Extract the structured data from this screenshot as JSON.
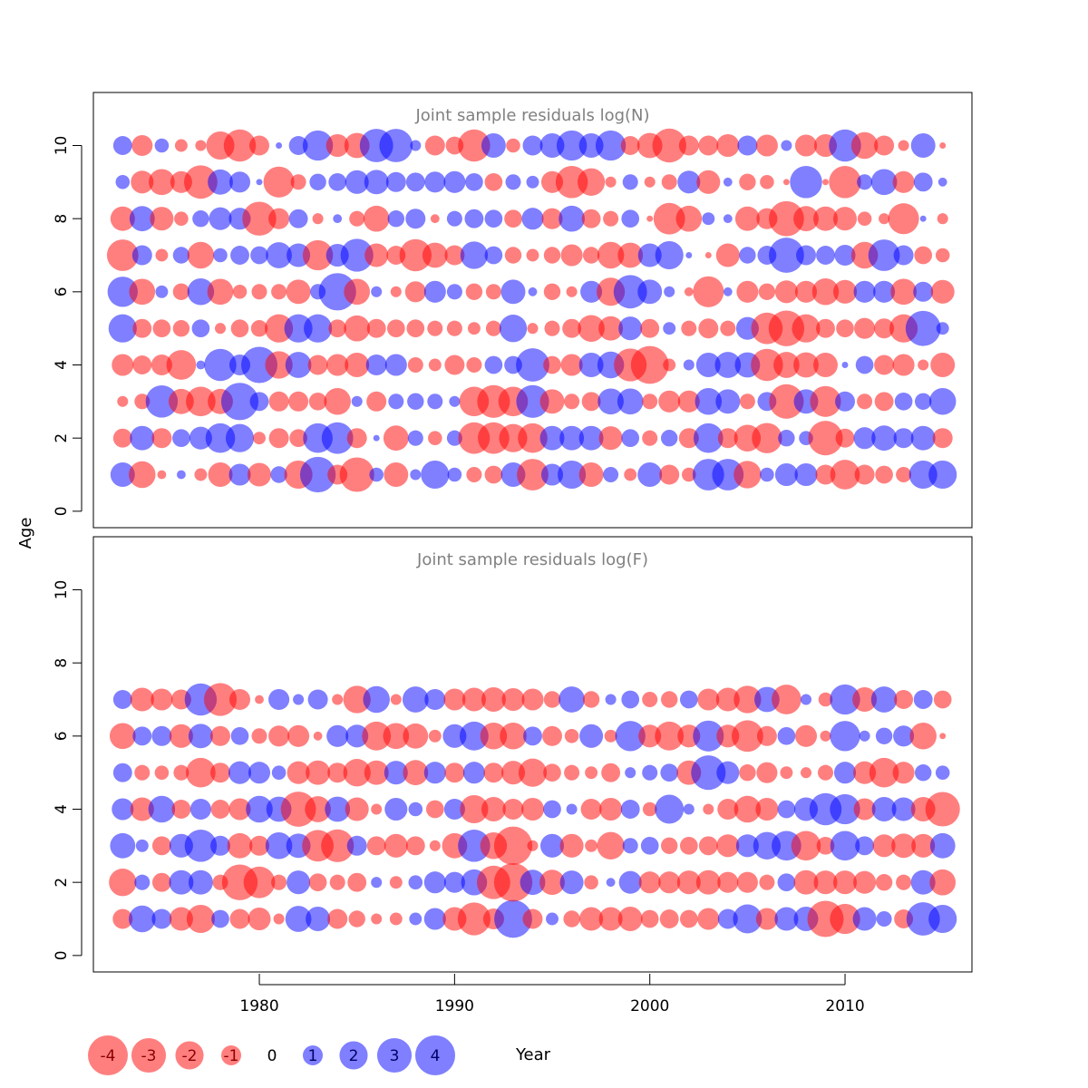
{
  "chart_data": {
    "type": "scatter",
    "subtype": "residual-bubble",
    "xlabel": "Year",
    "ylabel": "Age",
    "xticks": [
      1980,
      1990,
      2000,
      2010
    ],
    "yticks": [
      0,
      2,
      4,
      6,
      8,
      10
    ],
    "xlim": [
      1971.5,
      2016.5
    ],
    "ylim": [
      -0.45,
      11.45
    ],
    "years": [
      1973,
      1974,
      1975,
      1976,
      1977,
      1978,
      1979,
      1980,
      1981,
      1982,
      1983,
      1984,
      1985,
      1986,
      1987,
      1988,
      1989,
      1990,
      1991,
      1992,
      1993,
      1994,
      1995,
      1996,
      1997,
      1998,
      1999,
      2000,
      2001,
      2002,
      2003,
      2004,
      2005,
      2006,
      2007,
      2008,
      2009,
      2010,
      2011,
      2012,
      2013,
      2014,
      2015
    ],
    "colors": {
      "negative": "#ff0000",
      "positive": "#0000ff",
      "opacity": 0.5
    },
    "panels": [
      {
        "title": "Joint sample residuals log(N)",
        "ages": [
          1,
          2,
          3,
          4,
          5,
          6,
          7,
          8,
          9,
          10
        ],
        "residuals": [
          [
            1.5,
            -1.8,
            -0.2,
            0.2,
            -0.4,
            -1.5,
            1.2,
            -1.4,
            0.7,
            -2.0,
            3.2,
            -1.0,
            -3.0,
            0.5,
            -1.5,
            0.3,
            2.0,
            0.5,
            -0.6,
            -0.8,
            1.5,
            -2.5,
            1.2,
            2.0,
            -1.5,
            0.6,
            -0.4,
            1.5,
            -1.0,
            -0.5,
            2.5,
            2.5,
            -1.9,
            0.5,
            1.3,
            1.3,
            -1.0,
            -2.2,
            -1.0,
            -0.8,
            -0.6,
            2.0,
            2.0
          ],
          [
            -0.9,
            1.5,
            -1.0,
            0.8,
            1.3,
            2.2,
            2.0,
            -0.4,
            -1.0,
            -0.8,
            2.2,
            2.5,
            -1.0,
            0.1,
            -1.6,
            0.6,
            -0.5,
            0.6,
            -2.5,
            -2.5,
            -2.0,
            -2.2,
            1.5,
            1.5,
            1.5,
            -1.4,
            0.8,
            -0.6,
            0.7,
            -1.0,
            2.2,
            -1.0,
            -1.8,
            -2.3,
            0.7,
            0.5,
            -3.0,
            -0.9,
            1.2,
            1.6,
            1.0,
            1.5,
            -1.0
          ],
          [
            -0.3,
            -0.6,
            2.6,
            -1.6,
            -2.2,
            -1.6,
            3.5,
            0.9,
            -1.0,
            -1.0,
            -0.8,
            -1.8,
            0.3,
            -1.0,
            0.6,
            0.7,
            0.6,
            0.3,
            -2.2,
            -2.7,
            -2.2,
            2.7,
            -1.5,
            -0.6,
            -0.9,
            1.7,
            1.7,
            -0.6,
            -1.2,
            -1.2,
            1.8,
            1.5,
            -0.6,
            0.9,
            -3.0,
            1.5,
            -2.4,
            1.0,
            -0.6,
            -0.9,
            0.8,
            0.7,
            1.8
          ],
          [
            -1.2,
            -0.9,
            -1.1,
            -2.2,
            0.2,
            2.6,
            1.1,
            3.3,
            -1.9,
            1.7,
            -1.0,
            -1.2,
            -1.5,
            1.1,
            1.2,
            -0.6,
            -0.4,
            -1.0,
            -0.6,
            0.8,
            0.8,
            2.8,
            -0.8,
            -1.2,
            1.5,
            1.8,
            -2.7,
            -3.6,
            -0.4,
            0.3,
            1.5,
            1.7,
            1.6,
            -2.6,
            -1.7,
            -1.6,
            -1.5,
            0.1,
            0.8,
            -1.0,
            -1.2,
            -0.3,
            -1.5
          ],
          [
            2.0,
            -0.9,
            -0.8,
            -0.7,
            0.8,
            -0.3,
            -0.8,
            -0.7,
            -2.0,
            2.0,
            2.0,
            -0.8,
            -1.7,
            -0.9,
            -0.8,
            -0.8,
            -0.6,
            -0.6,
            -0.4,
            -0.6,
            1.9,
            -0.3,
            -0.6,
            -0.9,
            -1.8,
            -1.5,
            1.4,
            -0.9,
            0.4,
            -0.6,
            -1.0,
            -0.6,
            1.3,
            -2.5,
            -3.2,
            -2.0,
            -0.9,
            -0.8,
            -1.1,
            -1.0,
            -2.0,
            3.1,
            0.4
          ],
          [
            2.3,
            -1.7,
            0.4,
            -0.7,
            1.8,
            -1.7,
            -0.5,
            -0.6,
            -0.6,
            -1.5,
            0.6,
            3.5,
            -1.7,
            0.3,
            -0.3,
            -1.1,
            1.2,
            0.6,
            -0.7,
            -0.6,
            1.5,
            0.2,
            -0.7,
            -0.3,
            1.2,
            -2.0,
            2.8,
            1.5,
            0.3,
            -0.2,
            -2.4,
            0.2,
            -1.2,
            -0.7,
            -1.3,
            -1.2,
            -1.8,
            -1.4,
            1.2,
            1.2,
            -1.7,
            1.0,
            -1.4
          ],
          [
            -2.5,
            1.0,
            -0.4,
            0.7,
            -1.8,
            0.5,
            0.9,
            0.8,
            1.7,
            1.4,
            -2.3,
            1.3,
            2.7,
            -1.4,
            -0.9,
            -2.6,
            -1.6,
            -1.0,
            1.9,
            0.8,
            -0.7,
            -0.4,
            -0.7,
            -1.2,
            -0.7,
            -1.8,
            -1.6,
            1.4,
            2.0,
            0.1,
            -0.1,
            -1.4,
            0.7,
            0.9,
            3.1,
            1.0,
            0.9,
            1.1,
            -1.8,
            2.5,
            1.0,
            -0.8,
            -0.5
          ],
          [
            -1.5,
            1.6,
            -1.4,
            -0.5,
            0.7,
            1.3,
            1.2,
            -2.9,
            -1.1,
            0.9,
            -0.3,
            0.2,
            -0.6,
            -1.7,
            0.7,
            1.0,
            -0.2,
            0.6,
            0.9,
            0.8,
            -0.8,
            1.2,
            -1.1,
            1.7,
            -0.9,
            -0.6,
            0.8,
            -0.1,
            -2.5,
            -1.7,
            0.4,
            0.2,
            -1.5,
            -1.1,
            -3.1,
            -1.6,
            -1.5,
            -1.4,
            -0.5,
            -0.3,
            -2.4,
            0.1,
            -0.3
          ],
          [
            0.5,
            -1.3,
            -1.7,
            -1.2,
            -2.8,
            1.6,
            1.1,
            0.1,
            -2.4,
            -0.6,
            0.7,
            0.8,
            1.4,
            1.5,
            1.0,
            0.9,
            1.1,
            1.2,
            0.8,
            -0.8,
            0.6,
            0.4,
            -1.2,
            -2.6,
            -1.9,
            -0.3,
            0.6,
            -0.3,
            -0.6,
            1.3,
            -1.4,
            0.2,
            -0.7,
            -0.5,
            -0.1,
            2.6,
            -0.1,
            -2.6,
            0.6,
            1.7,
            -1.2,
            0.9,
            0.2
          ],
          [
            0.9,
            -1.1,
            0.5,
            -0.4,
            -0.3,
            -2.0,
            -2.6,
            -1.0,
            0.1,
            0.9,
            2.3,
            -1.3,
            -1.6,
            2.8,
            2.8,
            0.3,
            -1.0,
            -0.8,
            -2.6,
            1.5,
            -0.5,
            1.0,
            1.5,
            2.3,
            1.5,
            2.3,
            -0.9,
            -1.6,
            -2.9,
            -1.0,
            -1.0,
            -1.3,
            1.0,
            -1.2,
            0.3,
            -1.2,
            -1.3,
            2.6,
            -1.8,
            -1.0,
            -0.3,
            1.5,
            -0.1
          ]
        ]
      },
      {
        "title": "Joint sample residuals log(F)",
        "ages": [
          1,
          2,
          3,
          4,
          5,
          6,
          7
        ],
        "residuals": [
          [
            -1.0,
            1.8,
            1.0,
            -1.4,
            -2.0,
            0.8,
            -1.0,
            -1.3,
            -0.3,
            1.7,
            1.5,
            -1.0,
            -0.7,
            -0.3,
            -0.4,
            0.4,
            1.2,
            -1.4,
            -2.7,
            -1.1,
            3.6,
            -1.0,
            0.4,
            -0.7,
            -1.4,
            -1.4,
            -1.5,
            -0.8,
            -0.9,
            -0.8,
            -1.2,
            1.0,
            2.1,
            -1.2,
            1.4,
            1.5,
            -3.3,
            -2.3,
            1.4,
            0.6,
            -0.9,
            2.8,
            2.0
          ],
          [
            -1.9,
            0.6,
            -0.9,
            1.5,
            1.5,
            -0.6,
            -3.2,
            -2.5,
            -0.6,
            1.4,
            -0.8,
            -0.6,
            -0.9,
            0.3,
            -0.4,
            0.5,
            1.2,
            1.1,
            1.7,
            -2.8,
            -3.7,
            1.6,
            -1.6,
            1.4,
            -0.5,
            0.2,
            1.3,
            -1.2,
            -1.2,
            -1.4,
            -1.5,
            -1.1,
            -1.1,
            -0.6,
            0.8,
            -1.5,
            -1.4,
            -1.4,
            -1.3,
            -0.7,
            -0.6,
            1.5,
            -1.7
          ],
          [
            1.6,
            0.4,
            -0.9,
            1.4,
            2.6,
            1.0,
            -1.6,
            -1.0,
            1.8,
            1.5,
            -2.5,
            -2.7,
            1.0,
            -0.9,
            -1.4,
            -0.9,
            -0.3,
            -1.6,
            2.6,
            -1.8,
            -3.7,
            -0.3,
            1.4,
            -1.4,
            -0.4,
            -1.9,
            0.6,
            0.8,
            -0.7,
            -0.8,
            -0.9,
            -1.3,
            1.3,
            1.9,
            2.2,
            -2.2,
            -0.8,
            2.2,
            0.9,
            -1.3,
            -1.5,
            -1.4,
            1.6
          ],
          [
            1.2,
            -1.4,
            1.8,
            -0.9,
            1.1,
            -0.9,
            -1.2,
            1.8,
            1.6,
            -3.1,
            -1.7,
            1.6,
            -1.4,
            -0.3,
            1.3,
            0.5,
            -0.8,
            1.1,
            -2.0,
            -1.5,
            -1.1,
            -1.3,
            0.8,
            0.3,
            -1.1,
            -1.3,
            0.9,
            -0.5,
            2.1,
            0.3,
            -0.3,
            -1.1,
            -1.8,
            -1.3,
            0.8,
            1.4,
            2.6,
            2.3,
            -1.2,
            1.5,
            1.4,
            -1.5,
            -3.0
          ],
          [
            0.9,
            -0.6,
            -0.5,
            -0.6,
            -2.2,
            -1.0,
            1.3,
            1.2,
            0.5,
            -1.3,
            -1.5,
            -1.0,
            -1.9,
            -1.5,
            1.4,
            -1.6,
            1.2,
            -1.0,
            1.2,
            -1.0,
            -1.4,
            -2.0,
            -0.8,
            -0.6,
            -0.4,
            -0.9,
            0.3,
            0.6,
            0.8,
            -1.5,
            3.0,
            1.3,
            -0.7,
            -1.1,
            -0.4,
            -0.3,
            -0.6,
            1.2,
            -1.3,
            -2.2,
            -1.2,
            0.7,
            0.5
          ],
          [
            -1.7,
            0.9,
            1.0,
            -1.4,
            1.5,
            -1.0,
            0.8,
            -0.6,
            -1.1,
            -1.2,
            -0.2,
            1.2,
            1.3,
            -2.1,
            -1.7,
            -1.6,
            -0.4,
            1.4,
            2.1,
            -1.8,
            -1.8,
            0.9,
            -1.0,
            -0.5,
            1.4,
            -0.4,
            2.3,
            -1.3,
            -2.1,
            -1.3,
            2.4,
            -1.3,
            -2.5,
            -1.0,
            0.8,
            -1.2,
            -0.3,
            2.3,
            0.3,
            0.7,
            1.1,
            -1.8,
            -0.1
          ],
          [
            0.9,
            -1.4,
            -1.2,
            -1.0,
            2.6,
            -2.7,
            -1.1,
            -0.2,
            1.1,
            0.3,
            1.0,
            -0.3,
            -1.9,
            1.8,
            -0.3,
            1.7,
            1.1,
            -1.2,
            -1.4,
            -1.5,
            -1.3,
            -1.2,
            -0.7,
            1.7,
            -0.7,
            0.3,
            0.8,
            -0.6,
            -0.7,
            0.8,
            -1.2,
            -1.4,
            -1.9,
            1.6,
            -2.2,
            0.3,
            -0.5,
            2.3,
            -1.5,
            1.7,
            -0.9,
            0.9,
            -0.8
          ]
        ]
      }
    ],
    "legend": {
      "placement": "bottom-left",
      "entries": [
        {
          "value": -4,
          "label": "-4"
        },
        {
          "value": -3,
          "label": "-3"
        },
        {
          "value": -2,
          "label": "-2"
        },
        {
          "value": -1,
          "label": "-1"
        },
        {
          "value": 0,
          "label": "0"
        },
        {
          "value": 1,
          "label": "1"
        },
        {
          "value": 2,
          "label": "2"
        },
        {
          "value": 3,
          "label": "3"
        },
        {
          "value": 4,
          "label": "4"
        }
      ]
    }
  }
}
